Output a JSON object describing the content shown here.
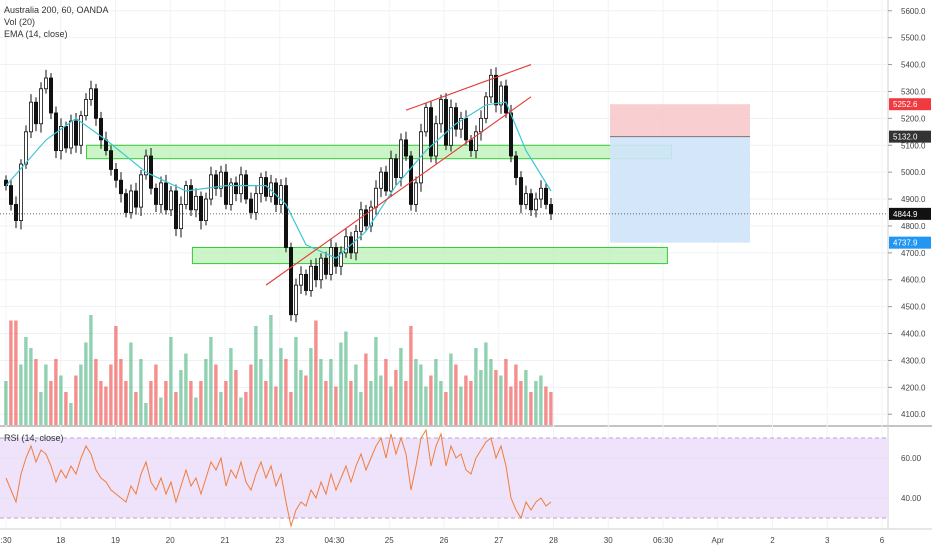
{
  "header": {
    "symbol_line": "Australia 200, 60, OANDA",
    "vol_line": "Vol (20)",
    "ema_line": "EMA (14, close)"
  },
  "rsi_panel": {
    "label": "RSI (14, close)"
  },
  "colors": {
    "up": "#53b987",
    "down": "#ef5350",
    "candle": "#111111",
    "ema": "#3ec6d6",
    "trendline": "#e53935",
    "zone_fill": "#b9f2b6",
    "zone_stroke": "#37c837",
    "stop_fill": "#f7c5c8",
    "target_fill": "#cfe4fa",
    "rsi_band": "#efe3fb",
    "rsi_line": "#f07d3c",
    "price_current": "#111111",
    "stop_tag": "#ef3b3f",
    "target_tag": "#2196f3"
  },
  "chart_data": [
    {
      "type": "candlestick",
      "title": "Australia 200, 60, OANDA",
      "y_ticks": [
        "5600.0",
        "5500.0",
        "5400.0",
        "5300.0",
        "5200.0",
        "5100.0",
        "5000.0",
        "4900.0",
        "4800.0",
        "4700.0",
        "4600.0",
        "4500.0",
        "4400.0",
        "4300.0",
        "4200.0",
        "4100.0"
      ],
      "ylim": [
        4060,
        5640
      ],
      "x_ticks": [
        ":30",
        "18",
        "19",
        "20",
        "21",
        "23",
        "04:30",
        "25",
        "26",
        "27",
        "28",
        "30",
        "06:30",
        "Apr",
        "2",
        "3",
        "6"
      ],
      "ohlc_path": [
        [
          0,
          4950
        ],
        [
          1,
          4880
        ],
        [
          2,
          4820
        ],
        [
          3,
          5030
        ],
        [
          4,
          5150
        ],
        [
          5,
          5260
        ],
        [
          6,
          5180
        ],
        [
          7,
          5310
        ],
        [
          8,
          5350
        ],
        [
          9,
          5220
        ],
        [
          10,
          5080
        ],
        [
          11,
          5170
        ],
        [
          12,
          5090
        ],
        [
          13,
          5190
        ],
        [
          14,
          5100
        ],
        [
          15,
          5210
        ],
        [
          16,
          5270
        ],
        [
          17,
          5310
        ],
        [
          18,
          5200
        ],
        [
          19,
          5120
        ],
        [
          20,
          5080
        ],
        [
          21,
          5010
        ],
        [
          22,
          4970
        ],
        [
          23,
          4920
        ],
        [
          24,
          4850
        ],
        [
          25,
          4930
        ],
        [
          26,
          4870
        ],
        [
          27,
          4990
        ],
        [
          28,
          5060
        ],
        [
          29,
          4940
        ],
        [
          30,
          4880
        ],
        [
          31,
          4960
        ],
        [
          32,
          4860
        ],
        [
          33,
          4930
        ],
        [
          34,
          4790
        ],
        [
          35,
          4880
        ],
        [
          36,
          4950
        ],
        [
          37,
          4860
        ],
        [
          38,
          4910
        ],
        [
          39,
          4820
        ],
        [
          40,
          4900
        ],
        [
          41,
          4990
        ],
        [
          42,
          4940
        ],
        [
          43,
          5000
        ],
        [
          44,
          4880
        ],
        [
          45,
          4960
        ],
        [
          46,
          4920
        ],
        [
          47,
          4990
        ],
        [
          48,
          4900
        ],
        [
          49,
          4850
        ],
        [
          50,
          4920
        ],
        [
          51,
          4980
        ],
        [
          52,
          4910
        ],
        [
          53,
          4960
        ],
        [
          54,
          4880
        ],
        [
          55,
          4950
        ],
        [
          56,
          4720
        ],
        [
          57,
          4470
        ],
        [
          58,
          4580
        ],
        [
          59,
          4620
        ],
        [
          60,
          4560
        ],
        [
          61,
          4650
        ],
        [
          62,
          4600
        ],
        [
          63,
          4680
        ],
        [
          64,
          4620
        ],
        [
          65,
          4720
        ],
        [
          66,
          4650
        ],
        [
          67,
          4700
        ],
        [
          68,
          4760
        ],
        [
          69,
          4700
        ],
        [
          70,
          4780
        ],
        [
          71,
          4860
        ],
        [
          72,
          4800
        ],
        [
          73,
          4870
        ],
        [
          74,
          4940
        ],
        [
          75,
          5000
        ],
        [
          76,
          4930
        ],
        [
          77,
          5050
        ],
        [
          78,
          4980
        ],
        [
          79,
          5120
        ],
        [
          80,
          5060
        ],
        [
          81,
          4880
        ],
        [
          82,
          4960
        ],
        [
          83,
          5150
        ],
        [
          84,
          5240
        ],
        [
          85,
          5060
        ],
        [
          86,
          5180
        ],
        [
          87,
          5270
        ],
        [
          88,
          5100
        ],
        [
          89,
          5240
        ],
        [
          90,
          5160
        ],
        [
          91,
          5200
        ],
        [
          92,
          5120
        ],
        [
          93,
          5080
        ],
        [
          94,
          5150
        ],
        [
          95,
          5200
        ],
        [
          96,
          5280
        ],
        [
          97,
          5360
        ],
        [
          98,
          5250
        ],
        [
          99,
          5320
        ],
        [
          100,
          5220
        ],
        [
          101,
          5060
        ],
        [
          102,
          4980
        ],
        [
          103,
          4880
        ],
        [
          104,
          4920
        ],
        [
          105,
          4860
        ],
        [
          106,
          4900
        ],
        [
          107,
          4940
        ],
        [
          108,
          4880
        ],
        [
          109,
          4845
        ]
      ],
      "ema_path": [
        [
          0,
          4950
        ],
        [
          8,
          5120
        ],
        [
          14,
          5200
        ],
        [
          20,
          5120
        ],
        [
          28,
          5000
        ],
        [
          36,
          4930
        ],
        [
          44,
          4950
        ],
        [
          52,
          4950
        ],
        [
          56,
          4880
        ],
        [
          60,
          4730
        ],
        [
          66,
          4680
        ],
        [
          72,
          4780
        ],
        [
          78,
          4950
        ],
        [
          84,
          5080
        ],
        [
          90,
          5180
        ],
        [
          96,
          5250
        ],
        [
          100,
          5260
        ],
        [
          104,
          5080
        ],
        [
          109,
          4930
        ]
      ],
      "support_resistance_zones": [
        {
          "from_bar": 18,
          "to_bar": 135,
          "low": 5050,
          "high": 5100
        },
        {
          "from_bar": 40,
          "to_bar": 135,
          "low": 4660,
          "high": 4720
        }
      ],
      "trendlines": [
        {
          "x1": 80,
          "y1": 5230,
          "x2": 105,
          "y2": 5400
        },
        {
          "x1": 52,
          "y1": 4580,
          "x2": 105,
          "y2": 5280
        }
      ],
      "position": {
        "entry": 5132.0,
        "stop": 5252.6,
        "target": 4737.9,
        "from_bar": 122,
        "to_bar": 150
      },
      "current_price": 4844.9,
      "price_labels": [
        "5252.6",
        "5132.0",
        "4844.9",
        "4737.9"
      ]
    },
    {
      "type": "bar",
      "title": "Vol (20)",
      "values": [
        40,
        95,
        95,
        55,
        80,
        70,
        60,
        30,
        55,
        40,
        60,
        45,
        30,
        20,
        45,
        55,
        75,
        100,
        60,
        40,
        35,
        55,
        90,
        60,
        40,
        75,
        30,
        60,
        20,
        40,
        55,
        25,
        40,
        80,
        30,
        50,
        65,
        40,
        25,
        40,
        60,
        80,
        55,
        30,
        40,
        70,
        50,
        25,
        30,
        55,
        90,
        60,
        40,
        100,
        35,
        70,
        60,
        30,
        80,
        50,
        45,
        70,
        95,
        60,
        40,
        60,
        35,
        75,
        85,
        40,
        55,
        30,
        65,
        40,
        80,
        45,
        60,
        35,
        50,
        70,
        40,
        90,
        60,
        55,
        35,
        45,
        60,
        40,
        30,
        65,
        55,
        35,
        45,
        40,
        70,
        50,
        75,
        60,
        50,
        45,
        60,
        35,
        55,
        40,
        50,
        30,
        40,
        45,
        35,
        30
      ],
      "max_value": 100
    },
    {
      "type": "line",
      "title": "RSI (14, close)",
      "y_ticks": [
        "60.00",
        "40.00"
      ],
      "ylim": [
        25,
        75
      ],
      "bands": [
        70,
        30
      ],
      "values": [
        50,
        44,
        38,
        52,
        60,
        66,
        58,
        64,
        62,
        56,
        48,
        54,
        50,
        56,
        52,
        60,
        66,
        62,
        54,
        50,
        48,
        44,
        42,
        40,
        38,
        46,
        42,
        52,
        58,
        48,
        44,
        50,
        42,
        48,
        38,
        46,
        54,
        46,
        50,
        42,
        50,
        58,
        54,
        60,
        46,
        54,
        50,
        58,
        48,
        44,
        52,
        58,
        50,
        56,
        46,
        52,
        38,
        26,
        34,
        38,
        36,
        44,
        40,
        48,
        42,
        52,
        44,
        50,
        56,
        48,
        56,
        62,
        54,
        60,
        66,
        70,
        60,
        72,
        62,
        70,
        62,
        44,
        56,
        70,
        74,
        56,
        66,
        72,
        56,
        66,
        60,
        62,
        54,
        52,
        60,
        64,
        68,
        70,
        60,
        66,
        56,
        40,
        34,
        30,
        38,
        34,
        38,
        40,
        36,
        38
      ]
    }
  ]
}
